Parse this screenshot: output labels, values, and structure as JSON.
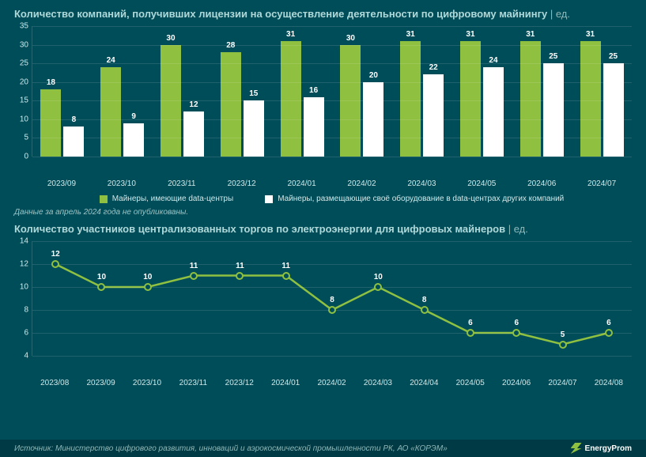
{
  "colors": {
    "background": "#004d5a",
    "bar_green": "#8fc040",
    "bar_white": "#ffffff",
    "text_light": "#cfe8e8",
    "title": "#b0d8d8",
    "grid": "rgba(255,255,255,0.12)",
    "line_stroke": "#8fc040",
    "marker_fill": "#004d5a"
  },
  "chart1": {
    "title": "Количество компаний, получивших лицензии на осуществление деятельности по цифровому майнингу",
    "unit_sep": " | ",
    "unit": "ед.",
    "type": "bar",
    "ylim": [
      0,
      35
    ],
    "ytick_step": 5,
    "yticks": [
      0,
      5,
      10,
      15,
      20,
      25,
      30,
      35
    ],
    "categories": [
      "2023/09",
      "2023/10",
      "2023/11",
      "2023/12",
      "2024/01",
      "2024/02",
      "2024/03",
      "2024/05",
      "2024/06",
      "2024/07"
    ],
    "series": [
      {
        "name": "Майнеры, имеющие data-центры",
        "color": "#8fc040",
        "values": [
          18,
          24,
          30,
          28,
          31,
          30,
          31,
          31,
          31,
          31
        ]
      },
      {
        "name": "Майнеры, размещающие своё оборудование в data-центрах других компаний",
        "color": "#ffffff",
        "values": [
          8,
          9,
          12,
          15,
          16,
          20,
          22,
          24,
          25,
          25
        ]
      }
    ],
    "legend": [
      "Майнеры, имеющие data-центры",
      "Майнеры, размещающие своё оборудование в data-центрах других компаний"
    ],
    "footnote": "Данные за апрель 2024 года не опубликованы."
  },
  "chart2": {
    "title": "Количество участников централизованных торгов по электроэнергии для цифровых майнеров",
    "unit_sep": " | ",
    "unit": "ед.",
    "type": "line",
    "ylim": [
      4,
      14
    ],
    "ytick_step": 2,
    "yticks": [
      4,
      6,
      8,
      10,
      12,
      14
    ],
    "categories": [
      "2023/08",
      "2023/09",
      "2023/10",
      "2023/11",
      "2023/12",
      "2024/01",
      "2024/02",
      "2024/03",
      "2024/04",
      "2024/05",
      "2024/06",
      "2024/07",
      "2024/08"
    ],
    "values": [
      12,
      10,
      10,
      11,
      11,
      11,
      8,
      10,
      8,
      6,
      6,
      5,
      6
    ],
    "line_width": 2.5,
    "marker_radius": 5
  },
  "source": "Источник: Министерство цифрового развития, инноваций и аэрокосмической промышленности РК, АО «КОРЭМ»",
  "brand": "EnergyProm"
}
